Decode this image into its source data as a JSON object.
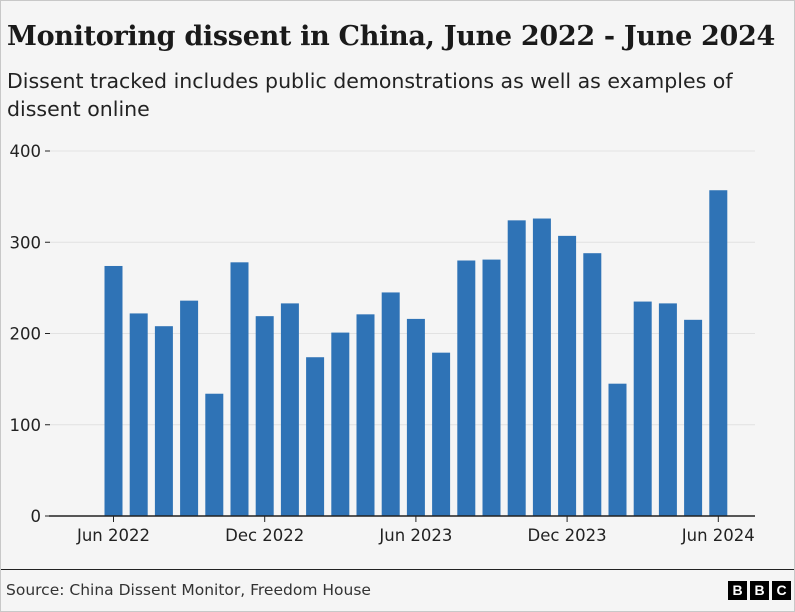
{
  "title": "Monitoring dissent in China, June 2022 - June 2024",
  "subtitle": "Dissent tracked includes public demonstrations as well as examples of dissent online",
  "source": "Source: China Dissent Monitor, Freedom House",
  "logo": {
    "letters": [
      "B",
      "B",
      "C"
    ]
  },
  "colors": {
    "bar": "#2f73b6",
    "grid": "#e2e2e2",
    "axis": "#222222"
  },
  "chart_data": {
    "type": "bar",
    "title": "Monitoring dissent in China, June 2022 - June 2024",
    "xlabel": "",
    "ylabel": "",
    "categories": [
      "Jun 2022",
      "Jul 2022",
      "Aug 2022",
      "Sep 2022",
      "Oct 2022",
      "Nov 2022",
      "Dec 2022",
      "Jan 2023",
      "Feb 2023",
      "Mar 2023",
      "Apr 2023",
      "May 2023",
      "Jun 2023",
      "Jul 2023",
      "Aug 2023",
      "Sep 2023",
      "Oct 2023",
      "Nov 2023",
      "Dec 2023",
      "Jan 2024",
      "Feb 2024",
      "Mar 2024",
      "Apr 2024",
      "May 2024",
      "Jun 2024"
    ],
    "values": [
      274,
      222,
      208,
      236,
      134,
      278,
      219,
      233,
      174,
      201,
      221,
      245,
      216,
      179,
      280,
      281,
      324,
      326,
      307,
      288,
      145,
      235,
      233,
      215,
      357
    ],
    "ylim": [
      0,
      400
    ],
    "yticks": [
      0,
      100,
      200,
      300,
      400
    ],
    "xtick_labels": [
      {
        "index": 0,
        "label": "Jun 2022"
      },
      {
        "index": 6,
        "label": "Dec 2022"
      },
      {
        "index": 12,
        "label": "Jun 2023"
      },
      {
        "index": 18,
        "label": "Dec 2023"
      },
      {
        "index": 24,
        "label": "Jun 2024"
      }
    ],
    "grid": true
  }
}
